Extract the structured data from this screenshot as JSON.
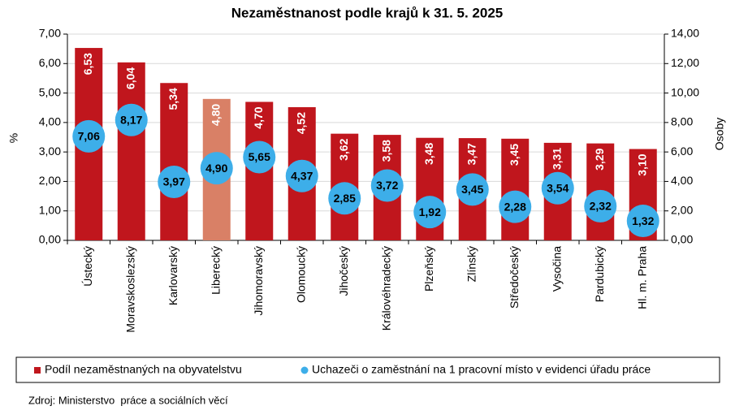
{
  "chart_data": {
    "type": "bar-bubble",
    "title": "Nezaměstnanost podle krajů k 31. 5. 2025",
    "ylabel": "%",
    "y2label": "Osoby",
    "categories": [
      "Ústecký",
      "Moravskoslezský",
      "Karlovarský",
      "Liberecký",
      "Jihomoravský",
      "Olomoucký",
      "Jihočeský",
      "Královéhradecký",
      "Plzeňský",
      "Zlínský",
      "Středočeský",
      "Vysočina",
      "Pardubický",
      "Hl. m. Praha"
    ],
    "series": [
      {
        "name": "Podíl nezaměstnaných na obyvatelstvu",
        "color": "#c0161d",
        "point_colors": [
          "#c0161d",
          "#c0161d",
          "#c0161d",
          "#d98066",
          "#c0161d",
          "#c0161d",
          "#c0161d",
          "#c0161d",
          "#c0161d",
          "#c0161d",
          "#c0161d",
          "#c0161d",
          "#c0161d",
          "#c0161d"
        ],
        "values": [
          6.53,
          6.04,
          5.34,
          4.8,
          4.7,
          4.52,
          3.62,
          3.58,
          3.48,
          3.47,
          3.45,
          3.31,
          3.29,
          3.1
        ],
        "value_labels": [
          "6,53",
          "6,04",
          "5,34",
          "4,80",
          "4,70",
          "4,52",
          "3,62",
          "3,58",
          "3,48",
          "3,47",
          "3,45",
          "3,31",
          "3,29",
          "3,10"
        ]
      },
      {
        "name": "Uchazeči o zaměstnání na 1 pracovní místo v evidenci úřadu práce",
        "color": "#3daee9",
        "axis": "y2",
        "values": [
          7.06,
          8.17,
          3.97,
          4.9,
          5.65,
          4.37,
          2.85,
          3.72,
          1.92,
          3.45,
          2.28,
          3.54,
          2.32,
          1.32
        ],
        "value_labels": [
          "7,06",
          "8,17",
          "3,97",
          "4,90",
          "5,65",
          "4,37",
          "2,85",
          "3,72",
          "1,92",
          "3,45",
          "2,28",
          "3,54",
          "2,32",
          "1,32"
        ]
      }
    ],
    "ylim": [
      0,
      7
    ],
    "yticks": [
      {
        "value": 0,
        "label": "0,00"
      },
      {
        "value": 1,
        "label": "1,00"
      },
      {
        "value": 2,
        "label": "2,00"
      },
      {
        "value": 3,
        "label": "3,00"
      },
      {
        "value": 4,
        "label": "4,00"
      },
      {
        "value": 5,
        "label": "5,00"
      },
      {
        "value": 6,
        "label": "6,00"
      },
      {
        "value": 7,
        "label": "7,00"
      }
    ],
    "y2lim": [
      0,
      14
    ],
    "y2ticks": [
      {
        "value": 0,
        "label": "0,00"
      },
      {
        "value": 2,
        "label": "2,00"
      },
      {
        "value": 4,
        "label": "4,00"
      },
      {
        "value": 6,
        "label": "6,00"
      },
      {
        "value": 8,
        "label": "8,00"
      },
      {
        "value": 10,
        "label": "10,00"
      },
      {
        "value": 12,
        "label": "12,00"
      },
      {
        "value": 14,
        "label": "14,00"
      }
    ],
    "grid": true,
    "source": "Zdroj: Ministerstvo  práce a sociálních věcí"
  }
}
